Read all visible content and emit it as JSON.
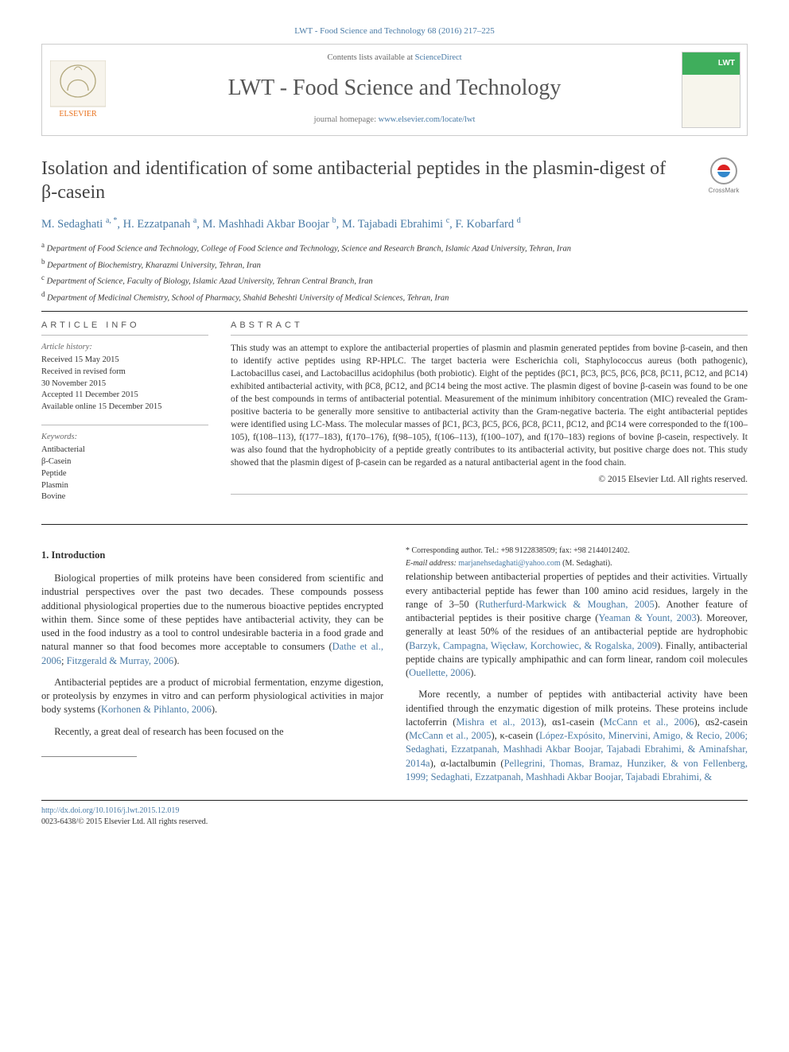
{
  "citation": "LWT - Food Science and Technology 68 (2016) 217–225",
  "header": {
    "contents_prefix": "Contents lists available at ",
    "contents_link": "ScienceDirect",
    "journal_name": "LWT - Food Science and Technology",
    "homepage_prefix": "journal homepage: ",
    "homepage_link": "www.elsevier.com/locate/lwt"
  },
  "title": "Isolation and identification of some antibacterial peptides in the plasmin-digest of β-casein",
  "crossmark_label": "CrossMark",
  "authors_html": "M. Sedaghati <sup>a, *</sup>, H. Ezzatpanah <sup>a</sup>, M. Mashhadi Akbar Boojar <sup>b</sup>, M. Tajabadi Ebrahimi <sup>c</sup>, F. Kobarfard <sup>d</sup>",
  "affiliations": [
    {
      "sup": "a",
      "text": "Department of Food Science and Technology, College of Food Science and Technology, Science and Research Branch, Islamic Azad University, Tehran, Iran"
    },
    {
      "sup": "b",
      "text": "Department of Biochemistry, Kharazmi University, Tehran, Iran"
    },
    {
      "sup": "c",
      "text": "Department of Science, Faculty of Biology, Islamic Azad University, Tehran Central Branch, Iran"
    },
    {
      "sup": "d",
      "text": "Department of Medicinal Chemistry, School of Pharmacy, Shahid Beheshti University of Medical Sciences, Tehran, Iran"
    }
  ],
  "info": {
    "heading": "ARTICLE INFO",
    "history_head": "Article history:",
    "history": [
      "Received 15 May 2015",
      "Received in revised form",
      "30 November 2015",
      "Accepted 11 December 2015",
      "Available online 15 December 2015"
    ],
    "keywords_head": "Keywords:",
    "keywords": [
      "Antibacterial",
      "β-Casein",
      "Peptide",
      "Plasmin",
      "Bovine"
    ]
  },
  "abstract": {
    "heading": "ABSTRACT",
    "text": "This study was an attempt to explore the antibacterial properties of plasmin and plasmin generated peptides from bovine β-casein, and then to identify active peptides using RP-HPLC. The target bacteria were Escherichia coli, Staphylococcus aureus (both pathogenic), Lactobacillus casei, and Lactobacillus acidophilus (both probiotic). Eight of the peptides (βC1, βC3, βC5, βC6, βC8, βC11, βC12, and βC14) exhibited antibacterial activity, with βC8, βC12, and βC14 being the most active. The plasmin digest of bovine β-casein was found to be one of the best compounds in terms of antibacterial potential. Measurement of the minimum inhibitory concentration (MIC) revealed the Gram-positive bacteria to be generally more sensitive to antibacterial activity than the Gram-negative bacteria. The eight antibacterial peptides were identified using LC-Mass. The molecular masses of βC1, βC3, βC5, βC6, βC8, βC11, βC12, and βC14 were corresponded to the f(100–105), f(108–113), f(177–183), f(170–176), f(98–105), f(106–113), f(100–107), and f(170–183) regions of bovine β-casein, respectively. It was also found that the hydrophobicity of a peptide greatly contributes to its antibacterial activity, but positive charge does not. This study showed that the plasmin digest of β-casein can be regarded as a natural antibacterial agent in the food chain.",
    "copyright": "© 2015 Elsevier Ltd. All rights reserved."
  },
  "body": {
    "h_intro": "1. Introduction",
    "p1a": "Biological properties of milk proteins have been considered from scientific and industrial perspectives over the past two decades. These compounds possess additional physiological properties due to the numerous bioactive peptides encrypted within them. Since some of these peptides have antibacterial activity, they can be used in the food industry as a tool to control undesirable bacteria in a food grade and natural manner so that food becomes more acceptable to consumers (",
    "c1": "Dathe et al., 2006",
    "p1b": "; ",
    "c2": "Fitzgerald & Murray, 2006",
    "p1c": ").",
    "p2a": "Antibacterial peptides are a product of microbial fermentation, enzyme digestion, or proteolysis by enzymes in vitro and can perform physiological activities in major body systems (",
    "c3": "Korhonen & Pihlanto, 2006",
    "p2b": ").",
    "p3": "Recently, a great deal of research has been focused on the",
    "p4a": "relationship between antibacterial properties of peptides and their activities. Virtually every antibacterial peptide has fewer than 100 amino acid residues, largely in the range of 3–50 (",
    "c4": "Rutherfurd-Markwick & Moughan, 2005",
    "p4b": "). Another feature of antibacterial peptides is their positive charge (",
    "c5": "Yeaman & Yount, 2003",
    "p4c": "). Moreover, generally at least 50% of the residues of an antibacterial peptide are hydrophobic (",
    "c6": "Barzyk, Campagna, Więcław, Korchowiec, & Rogalska, 2009",
    "p4d": "). Finally, antibacterial peptide chains are typically amphipathic and can form linear, random coil molecules (",
    "c7": "Ouellette, 2006",
    "p4e": ").",
    "p5a": "More recently, a number of peptides with antibacterial activity have been identified through the enzymatic digestion of milk proteins. These proteins include lactoferrin (",
    "c8": "Mishra et al., 2013",
    "p5b": "), αs1-casein (",
    "c9": "McCann et al., 2006",
    "p5c": "), αs2-casein (",
    "c10": "McCann et al., 2005",
    "p5d": "), κ-casein (",
    "c11": "López-Expósito, Minervini, Amigo, & Recio, 2006; Sedaghati, Ezzatpanah, Mashhadi Akbar Boojar, Tajabadi Ebrahimi, & Aminafshar, 2014a",
    "p5e": "), α-lactalbumin (",
    "c12": "Pellegrini, Thomas, Bramaz, Hunziker, & von Fellenberg, 1999; Sedaghati, Ezzatpanah, Mashhadi Akbar Boojar, Tajabadi Ebrahimi, &",
    "p5f": ""
  },
  "footnotes": {
    "corr": "* Corresponding author. Tel.: +98 9122838509; fax: +98 2144012402.",
    "email_label": "E-mail address: ",
    "email": "marjanehsedaghati@yahoo.com",
    "email_paren": " (M. Sedaghati)."
  },
  "footer": {
    "doi": "http://dx.doi.org/10.1016/j.lwt.2015.12.019",
    "issn_line": "0023-6438/© 2015 Elsevier Ltd. All rights reserved."
  },
  "colors": {
    "link": "#4a7ba6",
    "text": "#333333",
    "heading": "#444444",
    "rule": "#222222"
  }
}
